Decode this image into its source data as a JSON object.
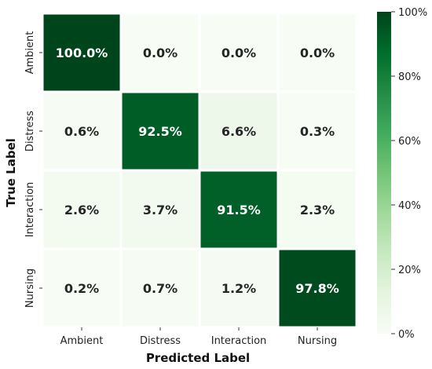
{
  "chart_data": {
    "type": "heatmap",
    "xlabel": "Predicted Label",
    "ylabel": "True Label",
    "x_categories": [
      "Ambient",
      "Distress",
      "Interaction",
      "Nursing"
    ],
    "y_categories": [
      "Ambient",
      "Distress",
      "Interaction",
      "Nursing"
    ],
    "values": [
      [
        100.0,
        0.0,
        0.0,
        0.0
      ],
      [
        0.6,
        92.5,
        6.6,
        0.3
      ],
      [
        2.6,
        3.7,
        91.5,
        2.3
      ],
      [
        0.2,
        0.7,
        1.2,
        97.8
      ]
    ],
    "cell_labels": [
      [
        "100.0%",
        "0.0%",
        "0.0%",
        "0.0%"
      ],
      [
        "0.6%",
        "92.5%",
        "6.6%",
        "0.3%"
      ],
      [
        "2.6%",
        "3.7%",
        "91.5%",
        "2.3%"
      ],
      [
        "0.2%",
        "0.7%",
        "1.2%",
        "97.8%"
      ]
    ],
    "value_range": [
      0,
      100
    ],
    "colorbar_ticks": [
      "0%",
      "20%",
      "40%",
      "60%",
      "80%",
      "100%"
    ],
    "colormap": {
      "low": "#f7fcf5",
      "high": "#00441b"
    }
  }
}
